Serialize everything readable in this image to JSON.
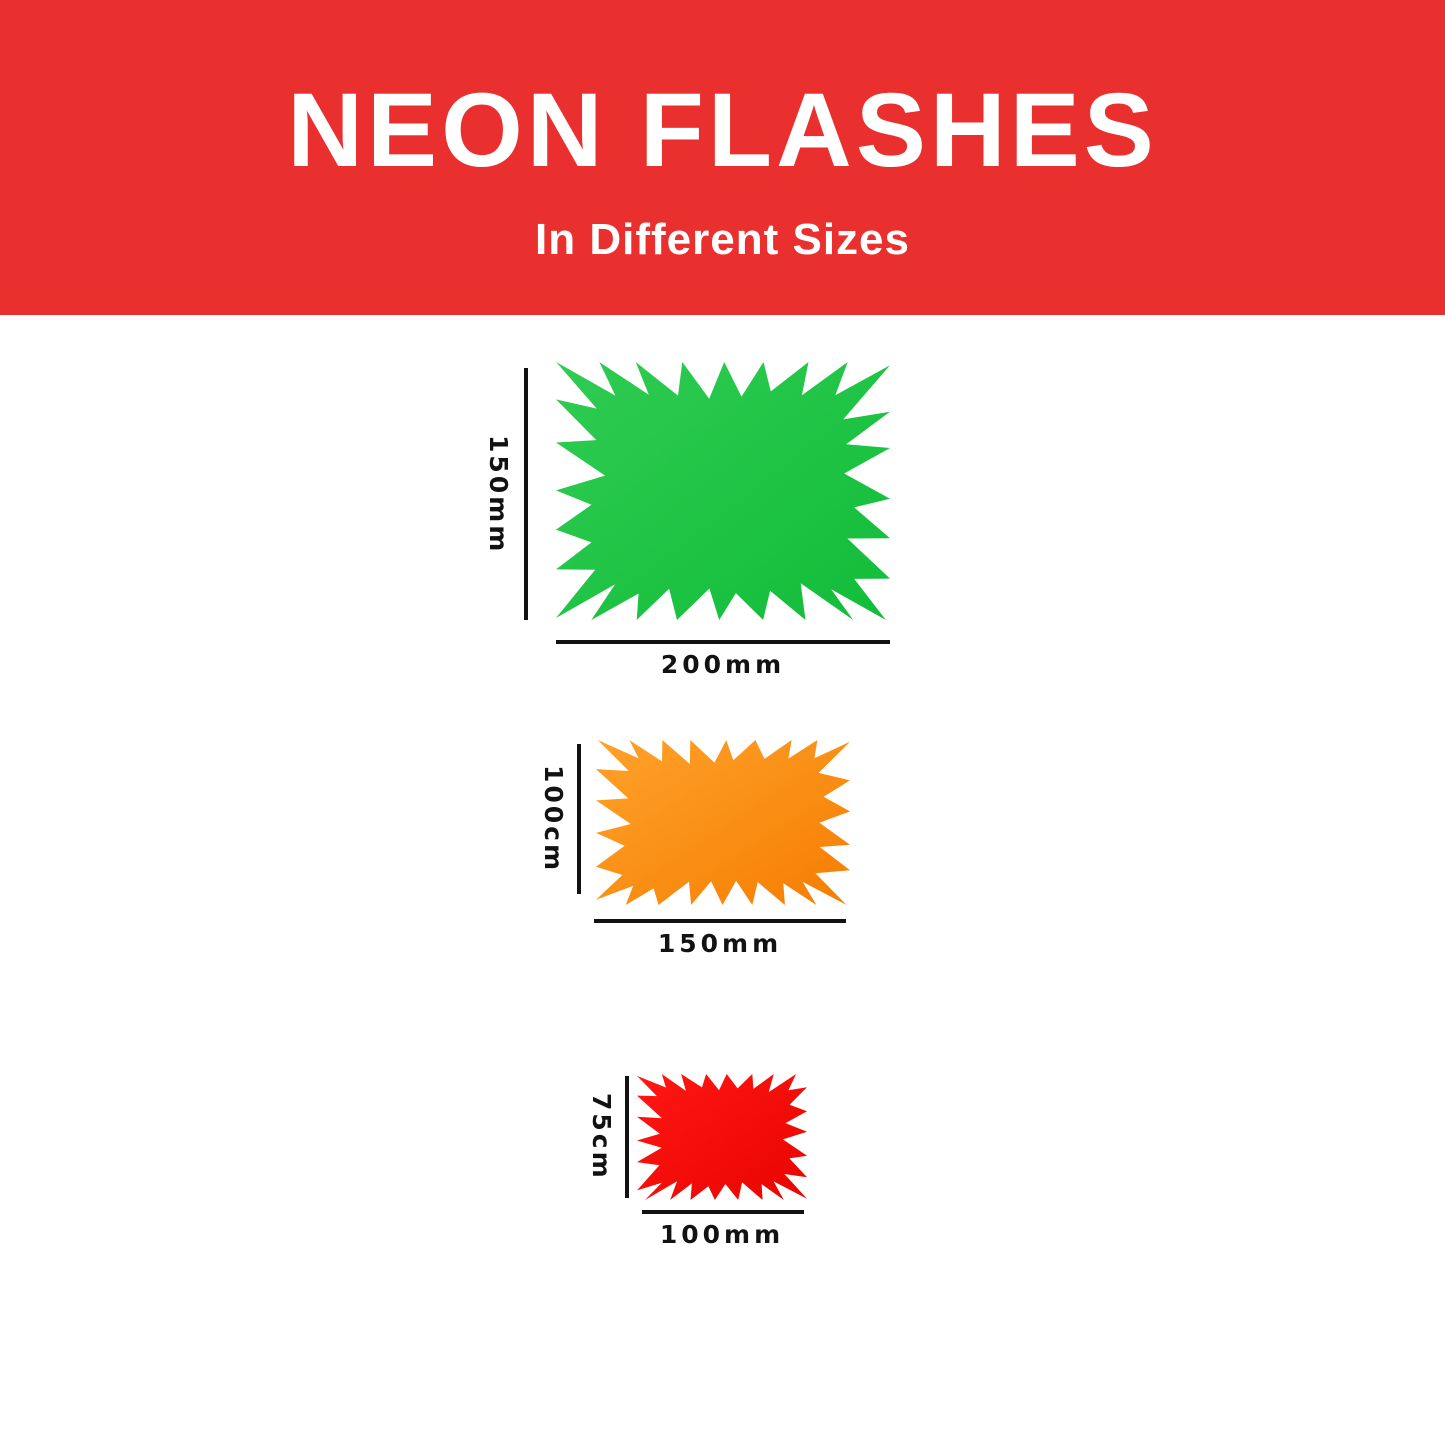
{
  "header": {
    "title": "NEON FLASHES",
    "subtitle": "In Different Sizes",
    "background": "#E9302F",
    "text_color": "#FFFFFF"
  },
  "flashes": [
    {
      "name": "green-flash",
      "color": "#12BC39",
      "color_light": "#2FCC52",
      "height_label": "150mm",
      "width_label": "200mm"
    },
    {
      "name": "orange-flash",
      "color": "#F57E02",
      "color_light": "#FFA12A",
      "height_label": "100cm",
      "width_label": "150mm"
    },
    {
      "name": "red-flash",
      "color": "#E90400",
      "color_light": "#FF1712",
      "height_label": "75cm",
      "width_label": "100mm"
    }
  ],
  "dimension_lines": {
    "color": "#121212",
    "label_color": "#121212"
  },
  "page": {
    "background": "#FFFFFF"
  }
}
